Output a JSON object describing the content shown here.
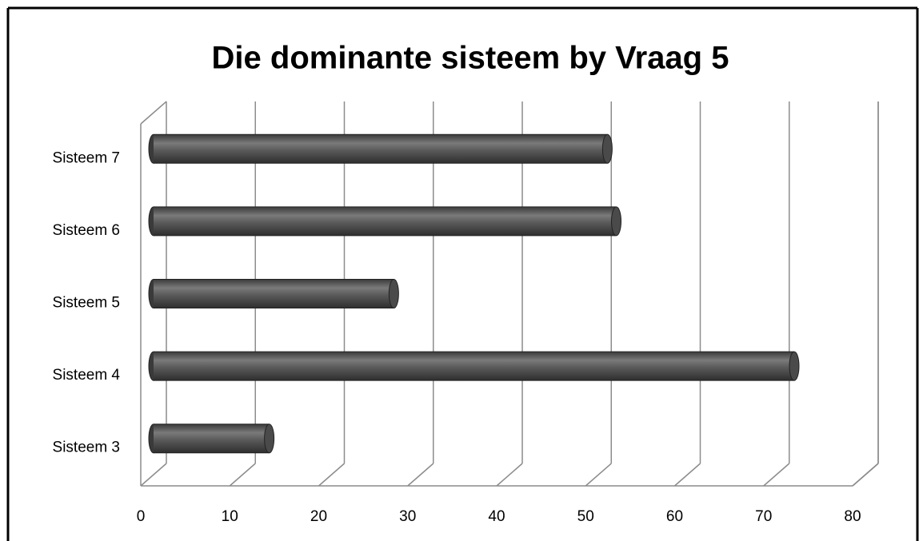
{
  "chart_data": {
    "type": "bar",
    "orientation": "horizontal",
    "title": "Die dominante sisteem by Vraag 5",
    "categories": [
      "Sisteem 3",
      "Sisteem 4",
      "Sisteem 5",
      "Sisteem 6",
      "Sisteem 7"
    ],
    "values": [
      13,
      72,
      27,
      52,
      51
    ],
    "color": "#595959",
    "xlim": [
      0,
      80
    ],
    "xticks": [
      0,
      10,
      20,
      30,
      40,
      50,
      60,
      70,
      80
    ],
    "grid": true
  }
}
